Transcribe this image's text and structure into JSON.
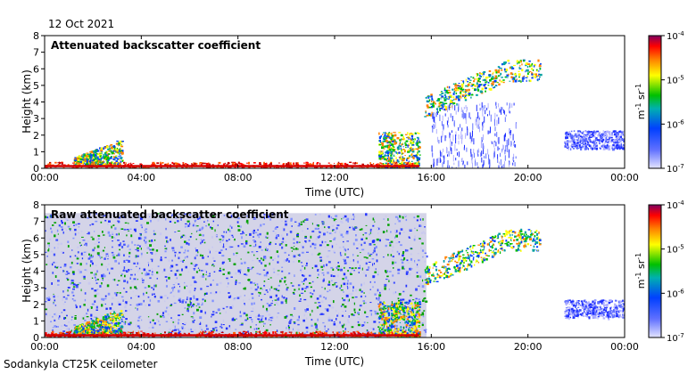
{
  "date": "12 Oct 2021",
  "footer": "Sodankyla CT25K ceilometer",
  "colorbar": {
    "ticks": [
      "10-7",
      "10-6",
      "10-5",
      "10-4"
    ],
    "ticks_base": "10",
    "ticks_exp": [
      "-7",
      "-6",
      "-5",
      "-4"
    ],
    "unit": "m-1 sr-1",
    "unit_parts": {
      "m": "m",
      "m_exp": "-1",
      "sr": "sr",
      "sr_exp": "-1"
    },
    "scale": "log",
    "colors": [
      "#d8d8ff",
      "#2030ff",
      "#00c000",
      "#ffff00",
      "#ff0000",
      "#800080"
    ]
  },
  "chart_data": [
    {
      "type": "heatmap",
      "title": "Attenuated backscatter coefficient",
      "xlabel": "Time (UTC)",
      "ylabel": "Height (km)",
      "xticks": [
        "00:00",
        "04:00",
        "08:00",
        "12:00",
        "16:00",
        "20:00",
        "00:00"
      ],
      "yticks": [
        "0",
        "1",
        "2",
        "3",
        "4",
        "5",
        "6",
        "7",
        "8"
      ],
      "xlim": [
        0,
        24
      ],
      "ylim": [
        0,
        8
      ],
      "grid": false,
      "features": [
        {
          "kind": "surface_layer",
          "t0": 0,
          "t1": 15.5,
          "h0": 0,
          "h1": 0.4,
          "level": "high"
        },
        {
          "kind": "low_cloud",
          "t0": 1.2,
          "t1": 3.2,
          "h0": 0.2,
          "h1": 1.8,
          "level": "mid"
        },
        {
          "kind": "boundary_layer",
          "t0": 13.8,
          "t1": 15.5,
          "h0": 0,
          "h1": 2.2,
          "level": "mid"
        },
        {
          "kind": "cloud",
          "t0": 15.7,
          "t1": 20.5,
          "h0": 2.5,
          "h1": 6.2,
          "level": "mid"
        },
        {
          "kind": "precip_streaks",
          "t0": 16,
          "t1": 19.5,
          "h0": 0,
          "h1": 4,
          "level": "low"
        },
        {
          "kind": "noise_band",
          "t0": 21.5,
          "t1": 24,
          "h0": 1.2,
          "h1": 2.3,
          "level": "low"
        }
      ]
    },
    {
      "type": "heatmap",
      "title": "Raw attenuated backscatter coefficient",
      "xlabel": "Time (UTC)",
      "ylabel": "Height (km)",
      "xticks": [
        "00:00",
        "04:00",
        "08:00",
        "12:00",
        "16:00",
        "20:00",
        "00:00"
      ],
      "yticks": [
        "0",
        "1",
        "2",
        "3",
        "4",
        "5",
        "6",
        "7",
        "8"
      ],
      "xlim": [
        0,
        24
      ],
      "ylim": [
        0,
        8
      ],
      "grid": false,
      "features": [
        {
          "kind": "noise_field",
          "t0": 0,
          "t1": 15.8,
          "h0": 0,
          "h1": 7.5,
          "level": "noise"
        },
        {
          "kind": "surface_layer",
          "t0": 0,
          "t1": 15.5,
          "h0": 0,
          "h1": 0.4,
          "level": "high"
        },
        {
          "kind": "low_cloud",
          "t0": 1.2,
          "t1": 3.2,
          "h0": 0.2,
          "h1": 1.8,
          "level": "mid"
        },
        {
          "kind": "boundary_layer",
          "t0": 13.8,
          "t1": 15.5,
          "h0": 0,
          "h1": 2.2,
          "level": "mid"
        },
        {
          "kind": "cloud",
          "t0": 15.7,
          "t1": 20.5,
          "h0": 2.5,
          "h1": 6.2,
          "level": "mid"
        },
        {
          "kind": "noise_band",
          "t0": 21.5,
          "t1": 24,
          "h0": 1.2,
          "h1": 2.3,
          "level": "low"
        }
      ]
    }
  ]
}
